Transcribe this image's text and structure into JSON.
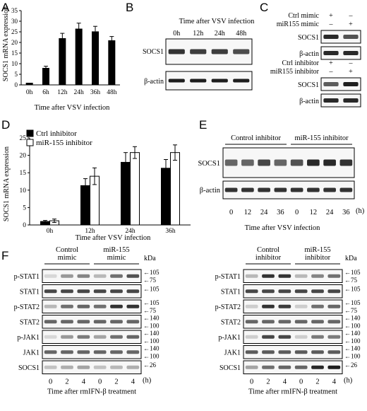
{
  "panels": {
    "A": {
      "letter": "A",
      "chart_data": {
        "type": "bar",
        "categories": [
          "0h",
          "6h",
          "12h",
          "24h",
          "36h",
          "48h"
        ],
        "values": [
          1,
          8,
          22,
          26.5,
          25.2,
          21
        ],
        "errors": [
          0,
          0.8,
          2.3,
          2.6,
          2.4,
          1.8
        ],
        "xlabel": "Time after VSV infection",
        "ylabel": "SOCS1 mRNA expression",
        "ylim": [
          0,
          35
        ],
        "yticks": [
          "0",
          "5",
          "10",
          "15",
          "20",
          "25",
          "30",
          "35"
        ],
        "bar_color": "#000000"
      }
    },
    "B": {
      "letter": "B",
      "header": "Time after VSV infection",
      "lanes": [
        "0h",
        "12h",
        "24h",
        "48h"
      ],
      "rows": [
        {
          "label": "SOCS1",
          "intensity": [
            0.85,
            0.8,
            0.8,
            0.72
          ]
        },
        {
          "label": "β-actin",
          "intensity": [
            0.95,
            0.95,
            0.95,
            0.95
          ]
        }
      ]
    },
    "C": {
      "letter": "C",
      "top": {
        "conditions": [
          {
            "name": "Ctrl mimic",
            "marks": [
              "+",
              "–"
            ]
          },
          {
            "name": "miR155 mimic",
            "marks": [
              "–",
              "+"
            ]
          }
        ],
        "rows": [
          {
            "label": "SOCS1",
            "intensity": [
              0.9,
              0.7
            ]
          },
          {
            "label": "β-actin",
            "intensity": [
              0.9,
              0.9
            ]
          }
        ]
      },
      "bottom": {
        "conditions": [
          {
            "name": "Ctrl inhibitor",
            "marks": [
              "+",
              "–"
            ]
          },
          {
            "name": "miR155 inhibitor",
            "marks": [
              "–",
              "+"
            ]
          }
        ],
        "rows": [
          {
            "label": "SOCS1",
            "intensity": [
              0.65,
              0.95
            ]
          },
          {
            "label": "β-actin",
            "intensity": [
              0.9,
              0.9
            ]
          }
        ]
      }
    },
    "D": {
      "letter": "D",
      "chart_data": {
        "type": "bar",
        "categories": [
          "0h",
          "12h",
          "24h",
          "36h"
        ],
        "series": [
          {
            "name": "Ctrl  inhibitor",
            "color": "#000000",
            "values": [
              1,
              11.3,
              18,
              16.3
            ],
            "errors": [
              0.3,
              2,
              2.8,
              2.5
            ]
          },
          {
            "name": "miR-155 inhibitor",
            "color": "#ffffff",
            "values": [
              1.2,
              14,
              20.8,
              20.8
            ],
            "errors": [
              0.5,
              2.4,
              1.7,
              2.2
            ]
          }
        ],
        "xlabel": "Time after VSV infection",
        "ylabel": "SOCS1 mRNA expression",
        "ylim": [
          0,
          25
        ],
        "yticks": [
          "0",
          "5",
          "10",
          "15",
          "20",
          "25"
        ],
        "legend": "top-left"
      }
    },
    "E": {
      "letter": "E",
      "groups": [
        "Control inhibitor",
        "miR-155 inhibitor"
      ],
      "lanes": [
        "0",
        "12",
        "24",
        "36",
        "0",
        "12",
        "24",
        "36"
      ],
      "unit": "(h)",
      "xlabel": "Time after VSV infection",
      "rows": [
        {
          "label": "SOCS1",
          "intensity": [
            0.6,
            0.6,
            0.75,
            0.6,
            0.7,
            0.9,
            0.9,
            0.85
          ]
        },
        {
          "label": "β-actin",
          "intensity": [
            0.85,
            0.85,
            0.85,
            0.85,
            0.85,
            0.85,
            0.85,
            0.85
          ]
        }
      ]
    },
    "F": {
      "letter": "F",
      "left": {
        "groups": [
          "Control\nmimic",
          "miR-155\nmimic"
        ],
        "lanes": [
          "0",
          "2",
          "4",
          "0",
          "2",
          "4"
        ],
        "unit": "(h)",
        "xlabel": "Time after rmIFN-β treatment",
        "kda_label": "kDa",
        "rows": [
          {
            "label": "p-STAT1",
            "markers": [
              "105",
              "75"
            ],
            "intensity": [
              0.05,
              0.35,
              0.45,
              0.2,
              0.55,
              0.7
            ]
          },
          {
            "label": "STAT1",
            "markers": [
              "105"
            ],
            "intensity": [
              0.75,
              0.75,
              0.75,
              0.75,
              0.75,
              0.75
            ]
          },
          {
            "label": "p-STAT2",
            "markers": [
              "105",
              "75"
            ],
            "intensity": [
              0.2,
              0.55,
              0.6,
              0.55,
              0.85,
              0.85
            ]
          },
          {
            "label": "STAT2",
            "markers": [
              "140",
              "100"
            ],
            "intensity": [
              0.6,
              0.6,
              0.6,
              0.6,
              0.6,
              0.6
            ]
          },
          {
            "label": "p-JAK1",
            "markers": [
              "140",
              "100"
            ],
            "intensity": [
              0.05,
              0.35,
              0.5,
              0.3,
              0.55,
              0.6
            ]
          },
          {
            "label": "JAK1",
            "markers": [
              "140",
              "100"
            ],
            "intensity": [
              0.6,
              0.6,
              0.6,
              0.6,
              0.6,
              0.6
            ]
          },
          {
            "label": "SOCS1",
            "markers": [
              "26"
            ],
            "intensity": [
              0.15,
              0.25,
              0.3,
              0.15,
              0.2,
              0.25
            ]
          }
        ]
      },
      "right": {
        "groups": [
          "Control\ninhibitor",
          "miR-155\ninhibitor"
        ],
        "lanes": [
          "0",
          "2",
          "4",
          "0",
          "2",
          "4"
        ],
        "unit": "(h)",
        "xlabel": "Time after rmIFN-β treatment",
        "kda_label": "kDa",
        "rows": [
          {
            "label": "p-STAT1",
            "markers": [
              "105",
              "75"
            ],
            "intensity": [
              0.2,
              0.85,
              0.85,
              0.2,
              0.45,
              0.55
            ]
          },
          {
            "label": "STAT1",
            "markers": [
              "105"
            ],
            "intensity": [
              0.75,
              0.75,
              0.75,
              0.75,
              0.75,
              0.75
            ]
          },
          {
            "label": "p-STAT2",
            "markers": [
              "105",
              "75"
            ],
            "intensity": [
              0.1,
              0.85,
              0.8,
              0.1,
              0.55,
              0.6
            ]
          },
          {
            "label": "STAT2",
            "markers": [
              "140",
              "100"
            ],
            "intensity": [
              0.6,
              0.6,
              0.6,
              0.6,
              0.6,
              0.6
            ]
          },
          {
            "label": "p-JAK1",
            "markers": [
              "140",
              "100"
            ],
            "intensity": [
              0.1,
              0.75,
              0.75,
              0.1,
              0.5,
              0.5
            ]
          },
          {
            "label": "JAK1",
            "markers": [
              "140",
              "100"
            ],
            "intensity": [
              0.65,
              0.65,
              0.65,
              0.65,
              0.65,
              0.65
            ]
          },
          {
            "label": "SOCS1",
            "markers": [
              "26"
            ],
            "intensity": [
              0.3,
              0.55,
              0.6,
              0.6,
              0.9,
              0.95
            ]
          }
        ]
      }
    }
  }
}
